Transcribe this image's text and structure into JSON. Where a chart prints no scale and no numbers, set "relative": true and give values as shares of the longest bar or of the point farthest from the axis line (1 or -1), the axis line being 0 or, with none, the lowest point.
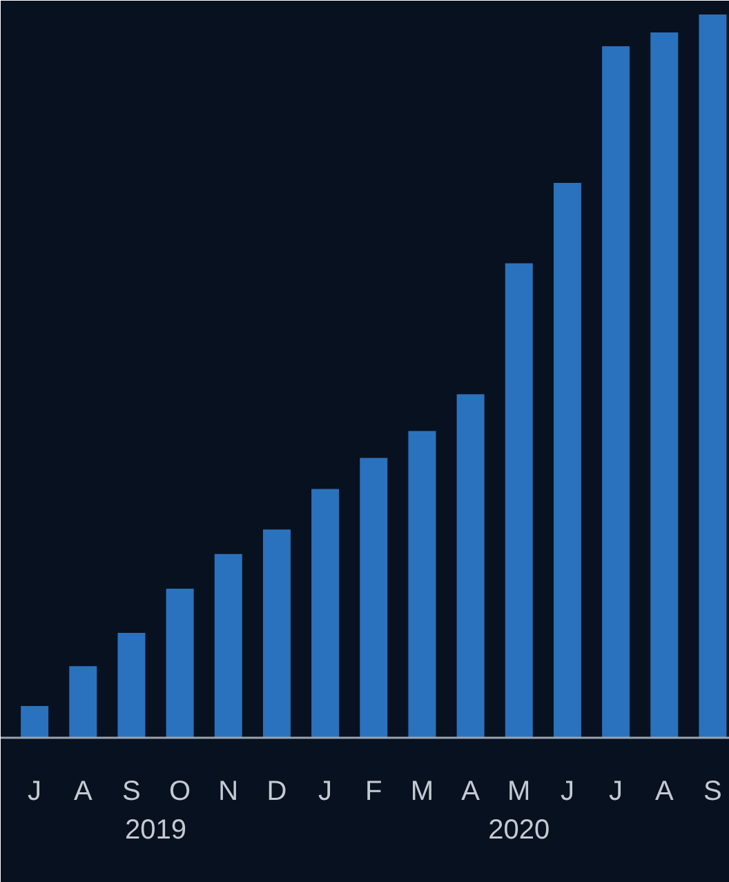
{
  "chart_data": {
    "type": "bar",
    "relative": true,
    "color": "#2a72bd",
    "categories": [
      "J",
      "A",
      "S",
      "O",
      "N",
      "D",
      "J",
      "F",
      "M",
      "A",
      "M",
      "J",
      "J",
      "A",
      "S"
    ],
    "values": [
      0.044,
      0.099,
      0.145,
      0.206,
      0.254,
      0.288,
      0.344,
      0.387,
      0.424,
      0.475,
      0.656,
      0.767,
      0.956,
      0.975,
      1
    ],
    "annotations": [
      "2019",
      "2020"
    ],
    "grid": false
  }
}
